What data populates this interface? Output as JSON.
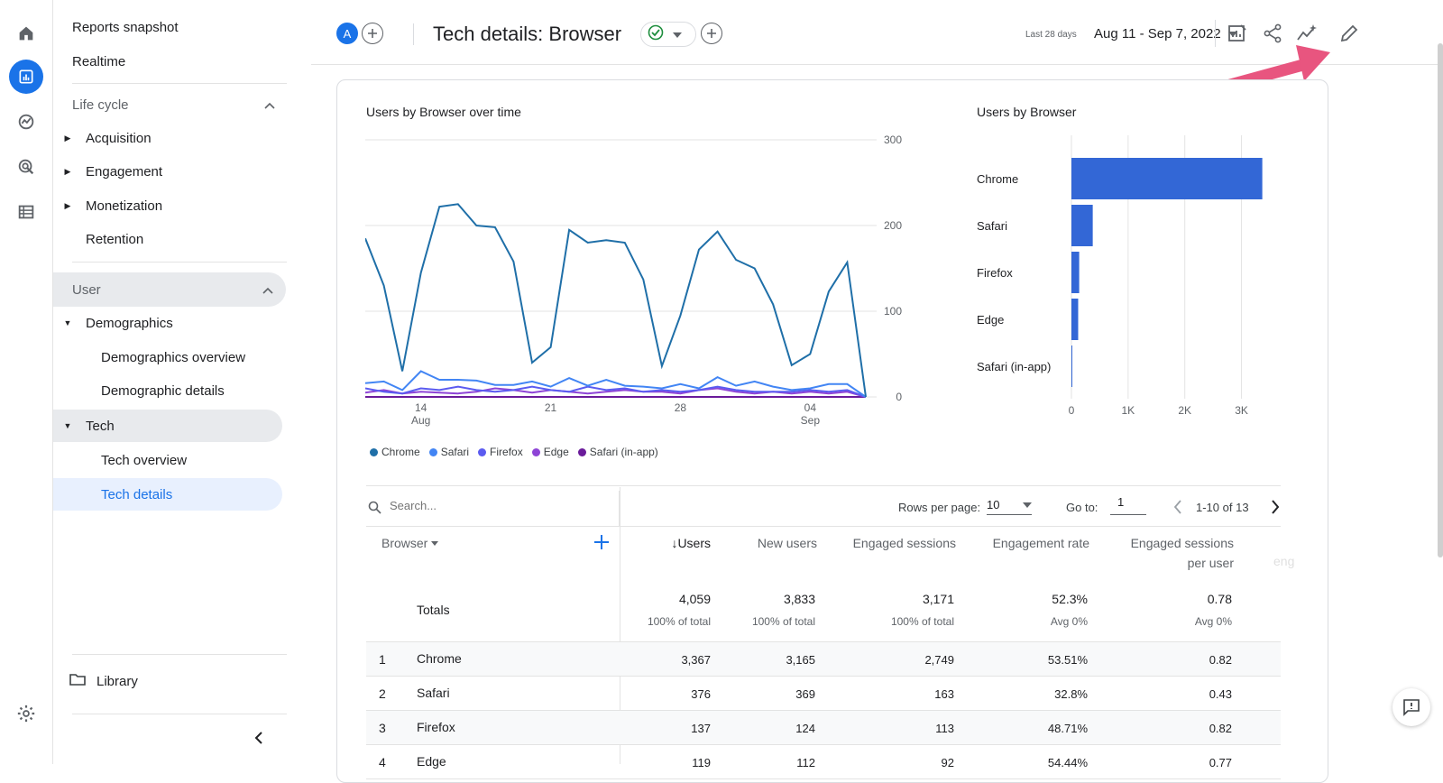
{
  "nav": {
    "reports_snapshot": "Reports snapshot",
    "realtime": "Realtime",
    "lifecycle": "Life cycle",
    "acquisition": "Acquisition",
    "engagement": "Engagement",
    "monetization": "Monetization",
    "retention": "Retention",
    "user": "User",
    "demographics": "Demographics",
    "demographics_overview": "Demographics overview",
    "demographic_details": "Demographic details",
    "tech": "Tech",
    "tech_overview": "Tech overview",
    "tech_details": "Tech details",
    "library": "Library"
  },
  "header": {
    "avatar_letter": "A",
    "title": "Tech details: Browser",
    "date_label": "Last 28 days",
    "date_range": "Aug 11 - Sep 7, 2022"
  },
  "colors": {
    "accent": "#1a73e8",
    "arrow": "#e8557f",
    "line_chrome": "#1f6fa8",
    "bar": "#3367d6"
  },
  "line_chart": {
    "title": "Users by Browser over time",
    "y_ticks": [
      "300",
      "200",
      "100",
      "0"
    ],
    "x_ticks": [
      {
        "day": "14",
        "month": "Aug"
      },
      {
        "day": "21",
        "month": ""
      },
      {
        "day": "28",
        "month": ""
      },
      {
        "day": "04",
        "month": "Sep"
      }
    ],
    "legend": [
      {
        "name": "Chrome",
        "color": "#1f6fa8"
      },
      {
        "name": "Safari",
        "color": "#4285f4"
      },
      {
        "name": "Firefox",
        "color": "#5b5bf0"
      },
      {
        "name": "Edge",
        "color": "#8e44d6"
      },
      {
        "name": "Safari (in-app)",
        "color": "#6a1b9a"
      }
    ]
  },
  "chart_data": [
    {
      "type": "line",
      "title": "Users by Browser over time",
      "x": [
        "Aug 11",
        "Aug 12",
        "Aug 13",
        "Aug 14",
        "Aug 15",
        "Aug 16",
        "Aug 17",
        "Aug 18",
        "Aug 19",
        "Aug 20",
        "Aug 21",
        "Aug 22",
        "Aug 23",
        "Aug 24",
        "Aug 25",
        "Aug 26",
        "Aug 27",
        "Aug 28",
        "Aug 29",
        "Aug 30",
        "Aug 31",
        "Sep 1",
        "Sep 2",
        "Sep 3",
        "Sep 4",
        "Sep 5",
        "Sep 6",
        "Sep 7"
      ],
      "ylim": [
        0,
        300
      ],
      "series": [
        {
          "name": "Chrome",
          "values": [
            185,
            130,
            30,
            145,
            222,
            225,
            200,
            198,
            158,
            40,
            58,
            195,
            180,
            183,
            180,
            137,
            36,
            95,
            172,
            193,
            160,
            150,
            108,
            37,
            50,
            123,
            157,
            0
          ]
        },
        {
          "name": "Safari",
          "values": [
            16,
            18,
            8,
            30,
            20,
            20,
            19,
            14,
            14,
            18,
            12,
            22,
            13,
            20,
            13,
            12,
            10,
            15,
            10,
            23,
            13,
            18,
            12,
            8,
            10,
            15,
            15,
            0
          ]
        },
        {
          "name": "Firefox",
          "values": [
            10,
            6,
            4,
            10,
            8,
            12,
            8,
            6,
            8,
            12,
            8,
            6,
            12,
            8,
            10,
            6,
            8,
            6,
            8,
            12,
            8,
            6,
            6,
            6,
            8,
            6,
            8,
            0
          ]
        },
        {
          "name": "Edge",
          "values": [
            5,
            8,
            4,
            6,
            5,
            4,
            6,
            10,
            8,
            5,
            8,
            6,
            4,
            6,
            8,
            6,
            6,
            4,
            8,
            10,
            6,
            4,
            6,
            4,
            6,
            4,
            6,
            0
          ]
        },
        {
          "name": "Safari (in-app)",
          "values": [
            0,
            0,
            0,
            0,
            0,
            0,
            0,
            0,
            0,
            0,
            0,
            0,
            0,
            0,
            0,
            0,
            0,
            0,
            0,
            0,
            0,
            0,
            0,
            0,
            0,
            0,
            0,
            0
          ]
        }
      ]
    },
    {
      "type": "bar",
      "title": "Users by Browser",
      "categories": [
        "Chrome",
        "Safari",
        "Firefox",
        "Edge",
        "Safari (in-app)"
      ],
      "values": [
        3367,
        376,
        137,
        119,
        10
      ],
      "x_ticks": [
        "0",
        "1K",
        "2K",
        "3K"
      ],
      "xlim": [
        0,
        3500
      ]
    }
  ],
  "bar_chart": {
    "title": "Users by Browser"
  },
  "table": {
    "search_placeholder": "Search...",
    "rows_per_page_label": "Rows per page:",
    "rows_per_page": "10",
    "goto_label": "Go to:",
    "goto_value": "1",
    "range": "1-10 of 13",
    "dim_header": "Browser",
    "columns": [
      "Users",
      "New users",
      "Engaged sessions",
      "Engagement rate",
      "Engaged sessions",
      "per user",
      "eng"
    ],
    "totals_label": "Totals",
    "totals": [
      {
        "value": "4,059",
        "sub": "100% of total"
      },
      {
        "value": "3,833",
        "sub": "100% of total"
      },
      {
        "value": "3,171",
        "sub": "100% of total"
      },
      {
        "value": "52.3%",
        "sub": "Avg 0%"
      },
      {
        "value": "0.78",
        "sub": "Avg 0%"
      }
    ],
    "rows": [
      {
        "idx": "1",
        "name": "Chrome",
        "users": "3,367",
        "new_users": "3,165",
        "sessions": "2,749",
        "rate": "53.51%",
        "per_user": "0.82"
      },
      {
        "idx": "2",
        "name": "Safari",
        "users": "376",
        "new_users": "369",
        "sessions": "163",
        "rate": "32.8%",
        "per_user": "0.43"
      },
      {
        "idx": "3",
        "name": "Firefox",
        "users": "137",
        "new_users": "124",
        "sessions": "113",
        "rate": "48.71%",
        "per_user": "0.82"
      },
      {
        "idx": "4",
        "name": "Edge",
        "users": "119",
        "new_users": "112",
        "sessions": "92",
        "rate": "54.44%",
        "per_user": "0.77"
      }
    ]
  }
}
